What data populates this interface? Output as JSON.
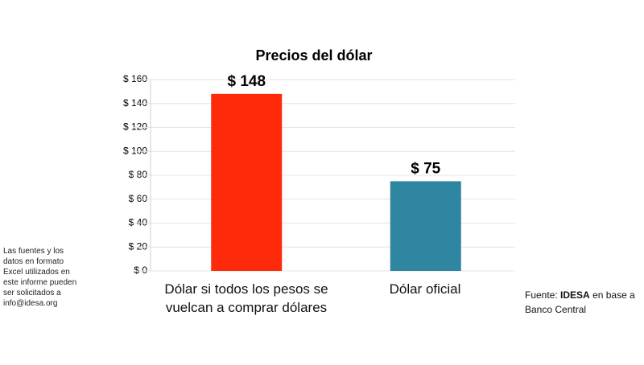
{
  "chart_data": {
    "type": "bar",
    "title": "Precios del dólar",
    "categories": [
      "Dólar si todos los pesos se vuelcan a comprar dólares",
      "Dólar oficial"
    ],
    "values": [
      148,
      75
    ],
    "value_labels": [
      "$ 148",
      "$ 75"
    ],
    "colors": [
      "#ff2a0a",
      "#2e86a0"
    ],
    "ylim": [
      0,
      160
    ],
    "yticks": [
      {
        "value": 0,
        "label": "$ 0"
      },
      {
        "value": 20,
        "label": "$ 20"
      },
      {
        "value": 40,
        "label": "$ 40"
      },
      {
        "value": 60,
        "label": "$ 60"
      },
      {
        "value": 80,
        "label": "$ 80"
      },
      {
        "value": 100,
        "label": "$ 100"
      },
      {
        "value": 120,
        "label": "$ 120"
      },
      {
        "value": 140,
        "label": "$ 140"
      },
      {
        "value": 160,
        "label": "$ 160"
      }
    ],
    "grid": true,
    "note": [
      "Las fuentes y los",
      "datos en formato",
      "Excel utilizados en",
      "este informe pueden",
      "ser solicitados a",
      "info@idesa.org"
    ],
    "source": {
      "prefix": "Fuente:",
      "emphasis": "IDESA",
      "suffix": "en base a Banco Central"
    }
  }
}
